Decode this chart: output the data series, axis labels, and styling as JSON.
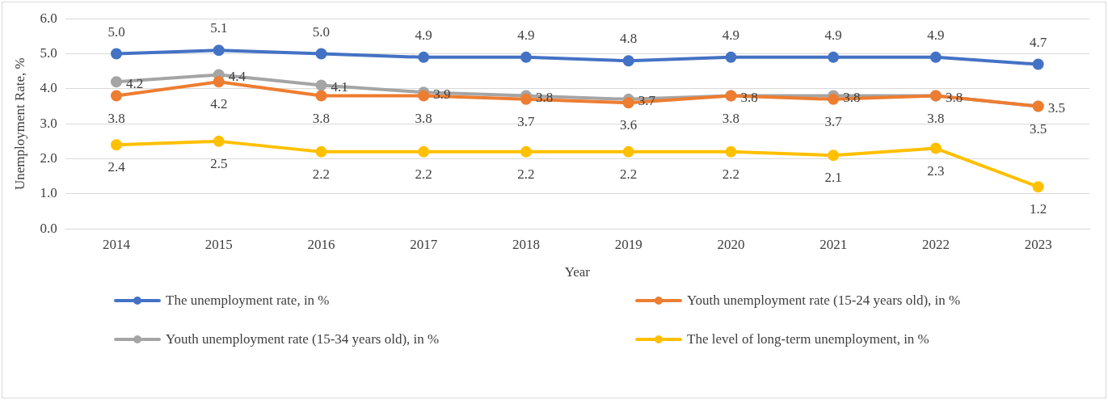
{
  "chart_data": {
    "type": "line",
    "xlabel": "Year",
    "ylabel": "Unemployment Rate, %",
    "categories": [
      "2014",
      "2015",
      "2016",
      "2017",
      "2018",
      "2019",
      "2020",
      "2021",
      "2022",
      "2023"
    ],
    "series": [
      {
        "name": "The unemployment rate, in %",
        "color": "#4472c4",
        "values": [
          5.0,
          5.1,
          5.0,
          4.9,
          4.9,
          4.8,
          4.9,
          4.9,
          4.9,
          4.7
        ],
        "value_labels": [
          "5.0",
          "5.1",
          "5.0",
          "4.9",
          "4.9",
          "4.8",
          "4.9",
          "4.9",
          "4.9",
          "4.7"
        ]
      },
      {
        "name": "Youth unemployment rate (15-24 years old), in %",
        "color": "#ed7d31",
        "values": [
          3.8,
          4.2,
          3.8,
          3.8,
          3.7,
          3.6,
          3.8,
          3.7,
          3.8,
          3.5
        ],
        "value_labels": [
          "3.8",
          "4.2",
          "3.8",
          "3.8",
          "3.7",
          "3.6",
          "3.8",
          "3.7",
          "3.8",
          "3.5"
        ]
      },
      {
        "name": "Youth unemployment rate (15-34 years old), in %",
        "color": "#a5a5a5",
        "values": [
          4.2,
          4.4,
          4.1,
          3.9,
          3.8,
          3.7,
          3.8,
          3.8,
          3.8,
          3.5
        ],
        "value_labels": [
          "4.2",
          "4.4",
          "4.1",
          "3.9",
          "3.8",
          "3.7",
          "3.8",
          "3.8",
          "3.8",
          "3.5"
        ]
      },
      {
        "name": "The level of long-term unemployment, in %",
        "color": "#ffc000",
        "values": [
          2.4,
          2.5,
          2.2,
          2.2,
          2.2,
          2.2,
          2.2,
          2.1,
          2.3,
          1.2
        ],
        "value_labels": [
          "2.4",
          "2.5",
          "2.2",
          "2.2",
          "2.2",
          "2.2",
          "2.2",
          "2.1",
          "2.3",
          "1.2"
        ]
      }
    ],
    "ylim": [
      0,
      6
    ],
    "yticks": [
      {
        "value": 0,
        "label": "0.0"
      },
      {
        "value": 1,
        "label": "1.0"
      },
      {
        "value": 2,
        "label": "2.0"
      },
      {
        "value": 3,
        "label": "3.0"
      },
      {
        "value": 4,
        "label": "4.0"
      },
      {
        "value": 5,
        "label": "5.0"
      },
      {
        "value": 6,
        "label": "6.0"
      }
    ],
    "grid": "y",
    "legend": "bottom",
    "marker": "circle",
    "line_style": "solid"
  }
}
